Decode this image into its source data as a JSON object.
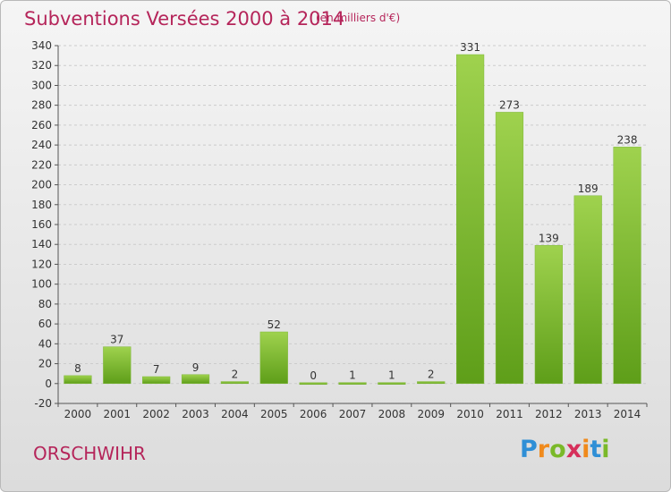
{
  "header": {
    "title": "Subventions Versées 2000 à 2014",
    "subtitle": "(en milliers d'€)"
  },
  "footer": {
    "location": "ORSCHWIHR",
    "logo_text": "Proxiti"
  },
  "colors": {
    "title": "#b5255a",
    "bar_light": "#9fd24e",
    "bar_dark": "#5e9e19",
    "grid": "#cccccc",
    "axis_text": "#333333"
  },
  "chart_data": {
    "type": "bar",
    "title": "Subventions Versées 2000 à 2014",
    "categories": [
      "2000",
      "2001",
      "2002",
      "2003",
      "2004",
      "2005",
      "2006",
      "2007",
      "2008",
      "2009",
      "2010",
      "2011",
      "2012",
      "2013",
      "2014"
    ],
    "values": [
      8,
      37,
      7,
      9,
      2,
      52,
      0,
      1,
      1,
      2,
      331,
      273,
      139,
      189,
      238
    ],
    "ylim": [
      -20,
      340
    ],
    "yticks": [
      -20,
      0,
      20,
      40,
      60,
      80,
      100,
      120,
      140,
      160,
      180,
      200,
      220,
      240,
      260,
      280,
      300,
      320,
      340
    ],
    "grid": "dashed-horizontal",
    "legend": "none",
    "data_labels": true
  }
}
